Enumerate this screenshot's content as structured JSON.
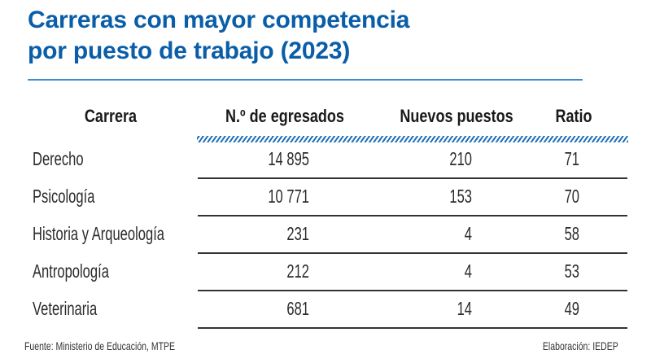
{
  "chart_data": {
    "type": "table",
    "title": "Carreras con mayor competencia por puesto de trabajo (2023)",
    "title_lines": [
      "Carreras con mayor competencia",
      "por puesto de trabajo (2023)"
    ],
    "columns": [
      "Carrera",
      "N.º de egresados",
      "Nuevos puestos",
      "Ratio"
    ],
    "rows": [
      {
        "carrera": "Derecho",
        "egresados": "14 895",
        "nuevos_puestos": "210",
        "ratio": "71"
      },
      {
        "carrera": "Psicología",
        "egresados": "10 771",
        "nuevos_puestos": "153",
        "ratio": "70"
      },
      {
        "carrera": "Historia y Arqueología",
        "egresados": "231",
        "nuevos_puestos": "4",
        "ratio": "58"
      },
      {
        "carrera": "Antropología",
        "egresados": "212",
        "nuevos_puestos": "4",
        "ratio": "53"
      },
      {
        "carrera": "Veterinaria",
        "egresados": "681",
        "nuevos_puestos": "14",
        "ratio": "49"
      }
    ],
    "values": {
      "egresados": [
        14895,
        10771,
        231,
        212,
        681
      ],
      "nuevos_puestos": [
        210,
        153,
        4,
        4,
        14
      ],
      "ratio": [
        71,
        70,
        58,
        53,
        49
      ]
    },
    "source": "Fuente: Ministerio de Educación, MTPE",
    "credit": "Elaboración: IEDEP"
  },
  "colors": {
    "title": "#0a5ea8",
    "rule": "#3d8ecf",
    "hatch": "#1f6fb8",
    "text": "#2b2b2b",
    "separator": "#333333"
  }
}
